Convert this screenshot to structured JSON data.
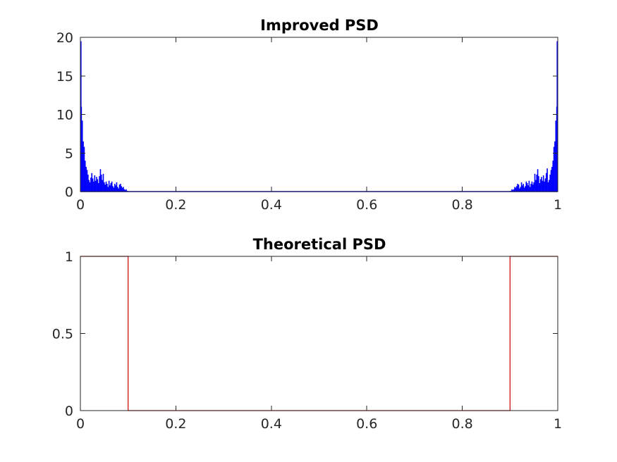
{
  "chart_data": [
    {
      "type": "bar",
      "title": "Improved PSD",
      "xlim": [
        0,
        1
      ],
      "ylim": [
        0,
        20
      ],
      "xticks": [
        0,
        0.2,
        0.4,
        0.6,
        0.8,
        1
      ],
      "xtick_labels": [
        "0",
        "0.2",
        "0.4",
        "0.6",
        "0.8",
        "1"
      ],
      "yticks": [
        0,
        5,
        10,
        15,
        20
      ],
      "ytick_labels": [
        "0",
        "5",
        "10",
        "15",
        "20"
      ],
      "color": "#0000ff",
      "grid": false,
      "series": [
        {
          "x": [
            0,
            0.002,
            0.004,
            0.006,
            0.008,
            0.01,
            0.012,
            0.014,
            0.016,
            0.018,
            0.02,
            0.022,
            0.024,
            0.026,
            0.028,
            0.03,
            0.032,
            0.034,
            0.036,
            0.038,
            0.04,
            0.042,
            0.044,
            0.046,
            0.048,
            0.05,
            0.052,
            0.054,
            0.056,
            0.058,
            0.06,
            0.062,
            0.064,
            0.066,
            0.068,
            0.07,
            0.072,
            0.074,
            0.076,
            0.078,
            0.08,
            0.082,
            0.084,
            0.086,
            0.088,
            0.09,
            0.092,
            0.094,
            0.096,
            0.098,
            0.1,
            0.9,
            0.902,
            0.904,
            0.906,
            0.908,
            0.91,
            0.912,
            0.914,
            0.916,
            0.918,
            0.92,
            0.922,
            0.924,
            0.926,
            0.928,
            0.93,
            0.932,
            0.934,
            0.936,
            0.938,
            0.94,
            0.942,
            0.944,
            0.946,
            0.948,
            0.95,
            0.952,
            0.954,
            0.956,
            0.958,
            0.96,
            0.962,
            0.964,
            0.966,
            0.968,
            0.97,
            0.972,
            0.974,
            0.976,
            0.978,
            0.98,
            0.982,
            0.984,
            0.986,
            0.988,
            0.99,
            0.992,
            0.994,
            0.996,
            0.998,
            1
          ],
          "values": [
            19.5,
            11,
            9.2,
            6.5,
            5.8,
            4,
            3.2,
            2.8,
            2.2,
            1.5,
            1.2,
            1.8,
            2.4,
            1.7,
            1.3,
            2.1,
            1.4,
            1.9,
            1.6,
            1.1,
            2.0,
            2.9,
            2.2,
            1.5,
            2.3,
            1.2,
            0.9,
            1.3,
            1.0,
            0.6,
            1.4,
            0.8,
            1.1,
            1.3,
            0.7,
            0.5,
            1.0,
            0.8,
            1.2,
            0.6,
            0.4,
            0.9,
            1.0,
            0.7,
            0.5,
            0.6,
            0.3,
            0.2,
            0.3,
            0.1,
            0.05,
            0.05,
            0.1,
            0.3,
            0.2,
            0.3,
            0.6,
            0.5,
            0.7,
            1.0,
            0.9,
            0.4,
            0.6,
            1.2,
            0.8,
            1.0,
            0.5,
            0.7,
            1.3,
            1.1,
            0.8,
            1.4,
            0.6,
            1.0,
            1.3,
            0.9,
            1.2,
            2.3,
            1.5,
            2.2,
            2.9,
            2.0,
            1.1,
            1.6,
            1.9,
            1.4,
            2.1,
            1.3,
            1.7,
            2.4,
            3.0,
            1.2,
            1.5,
            2.2,
            2.8,
            3.2,
            4.0,
            5.8,
            6.5,
            9.2,
            11,
            19.5
          ]
        }
      ]
    },
    {
      "type": "line",
      "title": "Theoretical PSD",
      "xlim": [
        0,
        1
      ],
      "ylim": [
        0,
        1
      ],
      "xticks": [
        0,
        0.2,
        0.4,
        0.6,
        0.8,
        1
      ],
      "xtick_labels": [
        "0",
        "0.2",
        "0.4",
        "0.6",
        "0.8",
        "1"
      ],
      "yticks": [
        0,
        0.5,
        1
      ],
      "ytick_labels": [
        "0",
        "0.5",
        "1"
      ],
      "color": "#cc0000",
      "grid": false,
      "series": [
        {
          "x": [
            0,
            0.1,
            0.1,
            0.9,
            0.9,
            1
          ],
          "values": [
            1,
            1,
            0,
            0,
            1,
            1
          ]
        }
      ]
    }
  ]
}
